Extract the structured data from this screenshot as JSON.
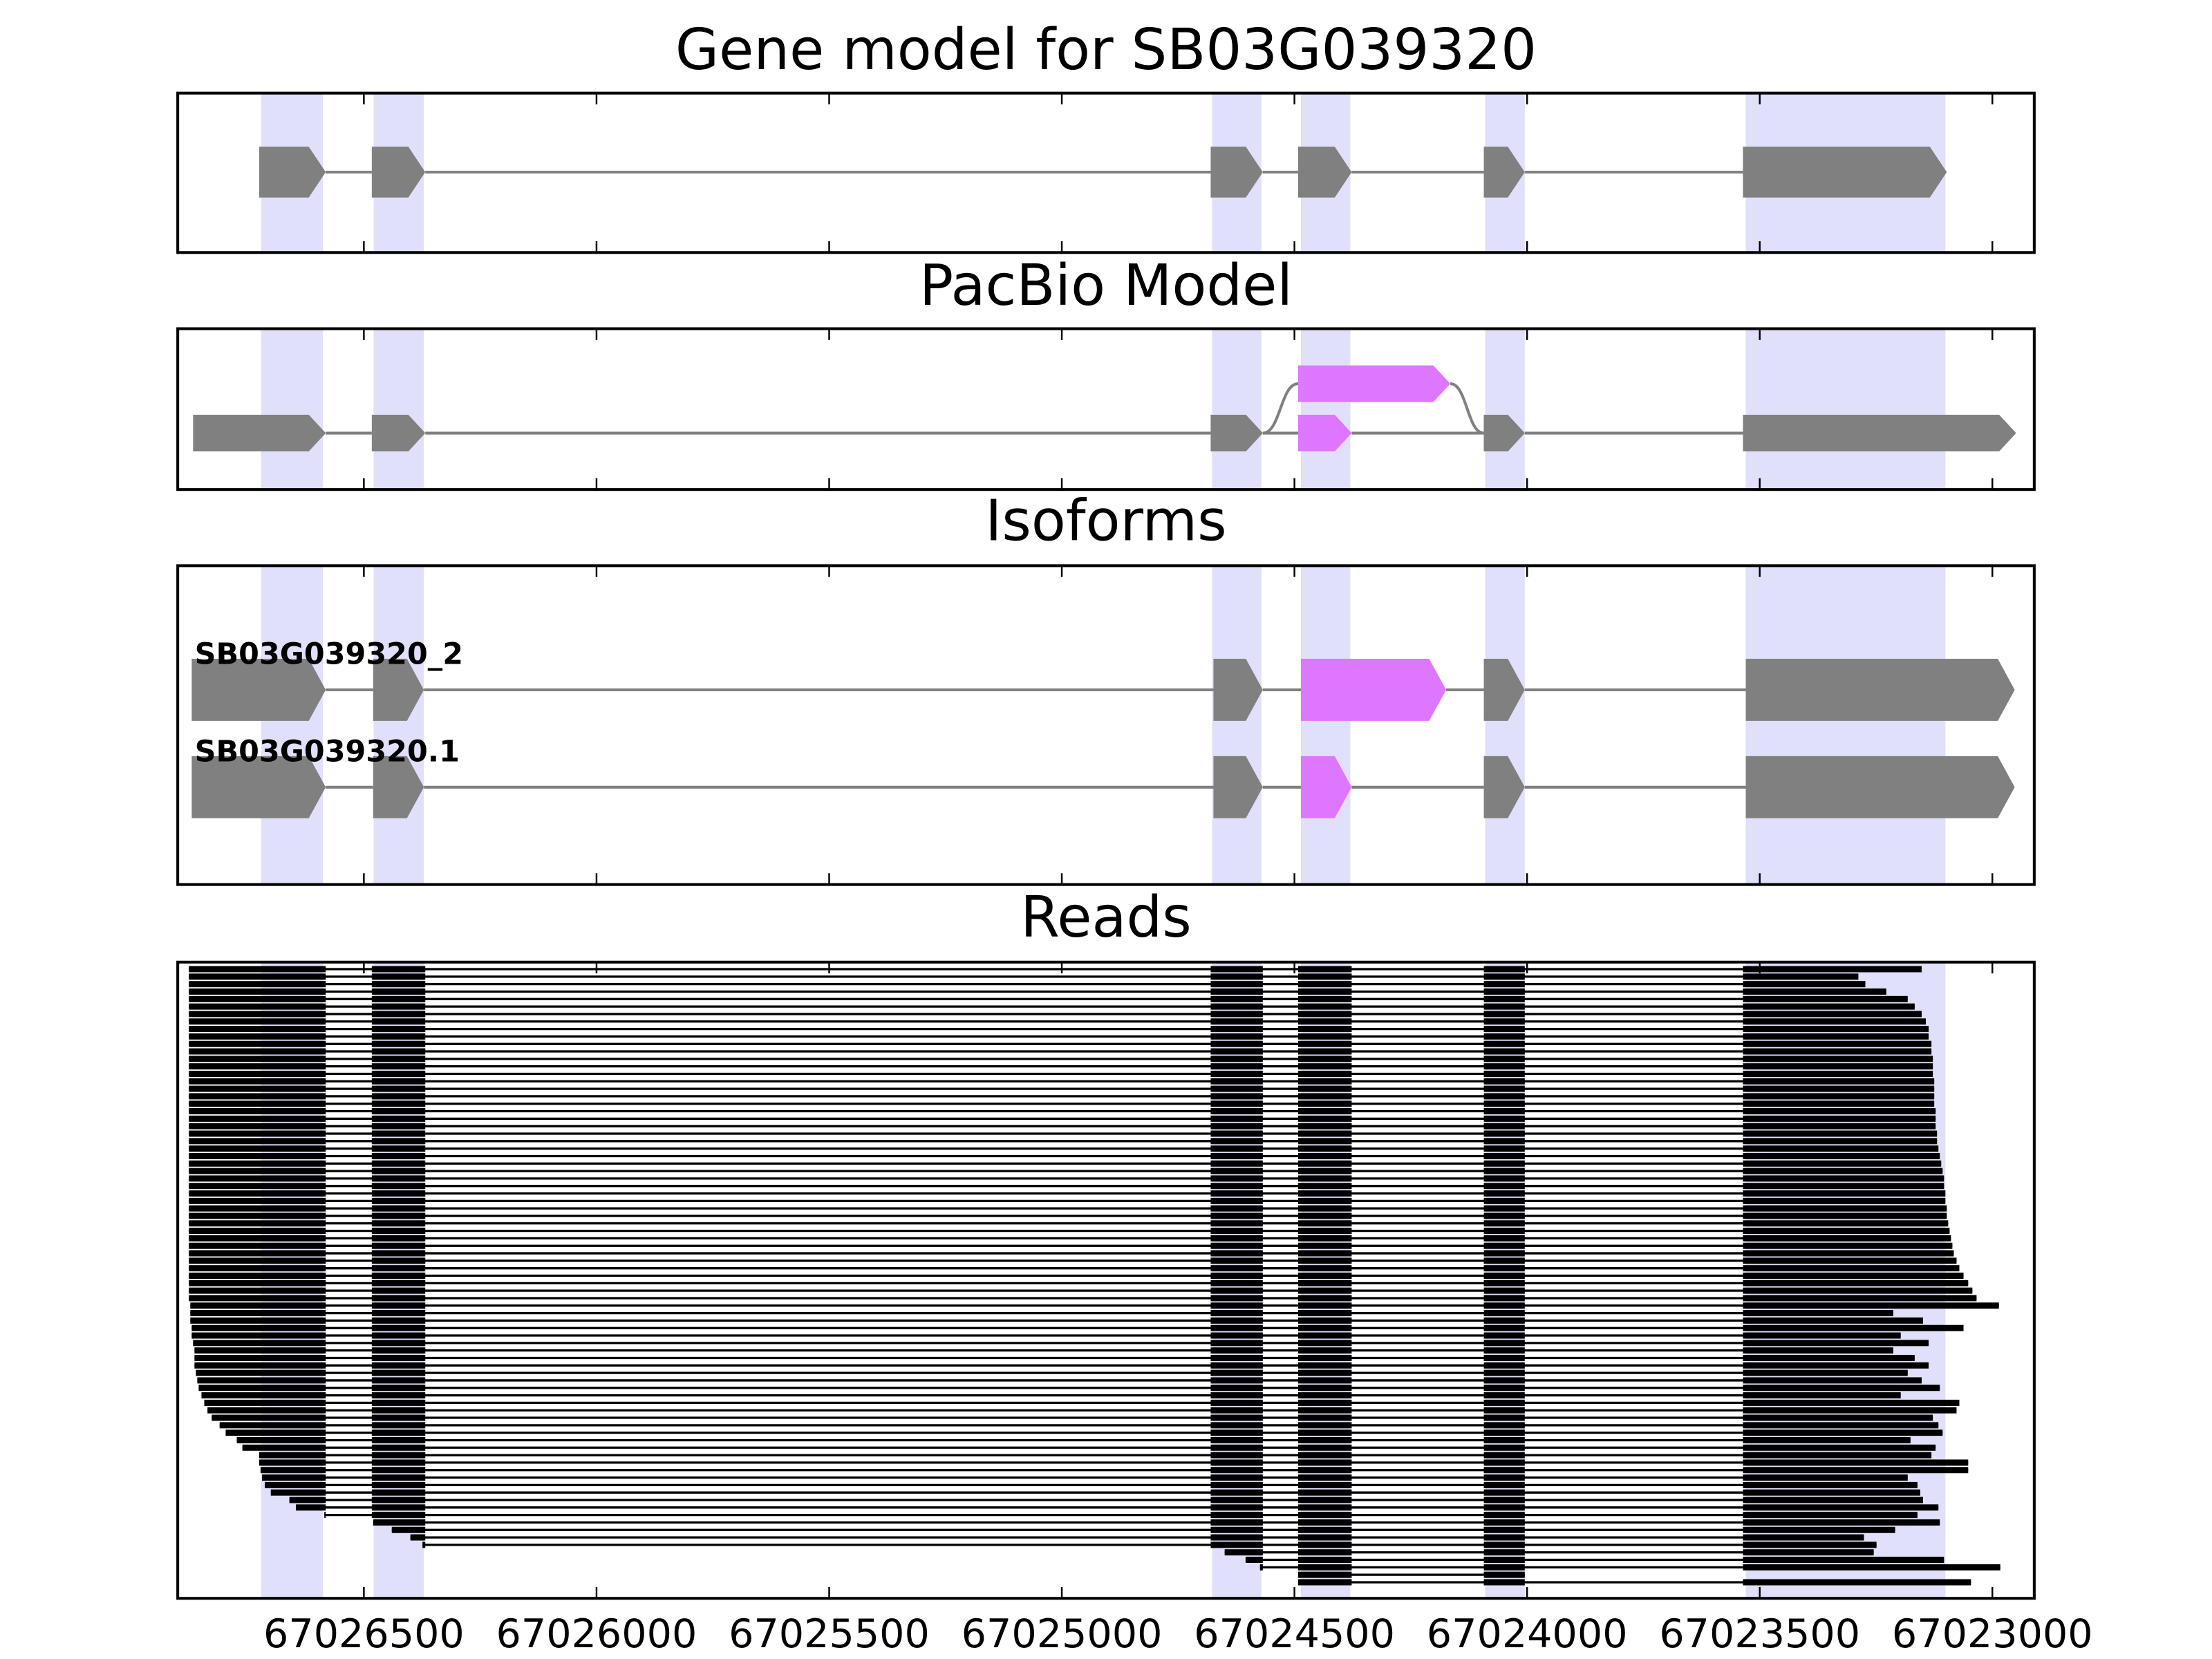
{
  "chart_data": {
    "type": "gene_model",
    "xlim": [
      67026900,
      67022910
    ],
    "xticks": [
      67026500,
      67026000,
      67025500,
      67025000,
      67024500,
      67024000,
      67023500,
      67023000
    ],
    "highlight_color": "#e0e0fb",
    "highlights": [
      [
        67026718,
        67026591
      ],
      [
        67026476,
        67026374
      ],
      [
        67024674,
        67024574
      ],
      [
        67024483,
        67024383
      ],
      [
        67024087,
        67024008
      ],
      [
        67023527,
        67023104
      ]
    ],
    "panels": [
      {
        "title": "Gene model for SB03G039320",
        "transcripts": [
          {
            "exons": [
              {
                "start": 67026725,
                "end": 67026582,
                "color": "#808080"
              },
              {
                "start": 67026483,
                "end": 67026368,
                "color": "#808080"
              },
              {
                "start": 67024680,
                "end": 67024568,
                "color": "#808080"
              },
              {
                "start": 67024492,
                "end": 67024377,
                "color": "#808080"
              },
              {
                "start": 67024093,
                "end": 67024005,
                "color": "#808080"
              },
              {
                "start": 67023536,
                "end": 67023098,
                "color": "#808080"
              }
            ]
          }
        ]
      },
      {
        "title": "PacBio Model",
        "transcripts": [
          {
            "exons": [
              {
                "start": 67026867,
                "end": 67026582,
                "color": "#808080"
              },
              {
                "start": 67026483,
                "end": 67026368,
                "color": "#808080"
              },
              {
                "start": 67024680,
                "end": 67024568,
                "color": "#808080"
              },
              {
                "start": 67024492,
                "end": 67024377,
                "color": "#dd77ff"
              },
              {
                "start": 67024093,
                "end": 67024005,
                "color": "#808080"
              },
              {
                "start": 67023536,
                "end": 67022949,
                "color": "#808080"
              }
            ]
          },
          {
            "exons": [
              {
                "start": 67024680,
                "end": 67024568,
                "color": "#808080"
              },
              {
                "start": 67024492,
                "end": 67024165,
                "color": "#dd77ff"
              },
              {
                "start": 67024093,
                "end": 67024005,
                "color": "#808080"
              }
            ]
          }
        ]
      },
      {
        "title": "Isoforms",
        "transcripts": [
          {
            "name": "SB03G039320_2",
            "exons": [
              {
                "start": 67026870,
                "end": 67026582,
                "color": "#808080"
              },
              {
                "start": 67026480,
                "end": 67026371,
                "color": "#808080"
              },
              {
                "start": 67024674,
                "end": 67024568,
                "color": "#808080"
              },
              {
                "start": 67024486,
                "end": 67024174,
                "color": "#dd77ff"
              },
              {
                "start": 67024093,
                "end": 67024005,
                "color": "#808080"
              },
              {
                "start": 67023530,
                "end": 67022952,
                "color": "#808080"
              }
            ]
          },
          {
            "name": "SB03G039320.1",
            "exons": [
              {
                "start": 67026870,
                "end": 67026582,
                "color": "#808080"
              },
              {
                "start": 67026480,
                "end": 67026371,
                "color": "#808080"
              },
              {
                "start": 67024674,
                "end": 67024568,
                "color": "#808080"
              },
              {
                "start": 67024486,
                "end": 67024377,
                "color": "#dd77ff"
              },
              {
                "start": 67024093,
                "end": 67024005,
                "color": "#808080"
              },
              {
                "start": 67023530,
                "end": 67022952,
                "color": "#808080"
              }
            ]
          }
        ]
      },
      {
        "title": "Reads",
        "color": "#000000",
        "reads": [
          [
            67026876,
            67023152
          ],
          [
            67026876,
            67023288
          ],
          [
            67026876,
            67023273
          ],
          [
            67026876,
            67023228
          ],
          [
            67026876,
            67023182
          ],
          [
            67026876,
            67023167
          ],
          [
            67026876,
            67023152
          ],
          [
            67026876,
            67023143
          ],
          [
            67026876,
            67023137
          ],
          [
            67026876,
            67023137
          ],
          [
            67026876,
            67023131
          ],
          [
            67026876,
            67023131
          ],
          [
            67026876,
            67023128
          ],
          [
            67026876,
            67023128
          ],
          [
            67026876,
            67023128
          ],
          [
            67026876,
            67023125
          ],
          [
            67026876,
            67023125
          ],
          [
            67026876,
            67023125
          ],
          [
            67026876,
            67023125
          ],
          [
            67026876,
            67023122
          ],
          [
            67026876,
            67023122
          ],
          [
            67026876,
            67023122
          ],
          [
            67026876,
            67023119
          ],
          [
            67026876,
            67023119
          ],
          [
            67026876,
            67023116
          ],
          [
            67026876,
            67023113
          ],
          [
            67026876,
            67023110
          ],
          [
            67026876,
            67023107
          ],
          [
            67026876,
            67023104
          ],
          [
            67026876,
            67023104
          ],
          [
            67026876,
            67023101
          ],
          [
            67026876,
            67023101
          ],
          [
            67026876,
            67023098
          ],
          [
            67026876,
            67023098
          ],
          [
            67026876,
            67023095
          ],
          [
            67026876,
            67023092
          ],
          [
            67026876,
            67023089
          ],
          [
            67026876,
            67023086
          ],
          [
            67026876,
            67023083
          ],
          [
            67026876,
            67023077
          ],
          [
            67026876,
            67023071
          ],
          [
            67026876,
            67023062
          ],
          [
            67026876,
            67023052
          ],
          [
            67026876,
            67023043
          ],
          [
            67026876,
            67023034
          ],
          [
            67026873,
            67022986
          ],
          [
            67026873,
            67023213
          ],
          [
            67026873,
            67023149
          ],
          [
            67026870,
            67023062
          ],
          [
            67026870,
            67023197
          ],
          [
            67026867,
            67023137
          ],
          [
            67026864,
            67023213
          ],
          [
            67026864,
            67023167
          ],
          [
            67026864,
            67023137
          ],
          [
            67026861,
            67023182
          ],
          [
            67026858,
            67023152
          ],
          [
            67026855,
            67023113
          ],
          [
            67026849,
            67023197
          ],
          [
            67026843,
            67023071
          ],
          [
            67026836,
            67023077
          ],
          [
            67026827,
            67023128
          ],
          [
            67026810,
            67023116
          ],
          [
            67026797,
            67023107
          ],
          [
            67026773,
            67023176
          ],
          [
            67026761,
            67023122
          ],
          [
            67026725,
            67023131
          ],
          [
            67026725,
            67023052
          ],
          [
            67026722,
            67023052
          ],
          [
            67026719,
            67023182
          ],
          [
            67026713,
            67023161
          ],
          [
            67026700,
            67023155
          ],
          [
            67026660,
            67023149
          ],
          [
            67026646,
            67023116
          ],
          [
            67026585,
            67023161
          ],
          [
            67026480,
            67023113
          ],
          [
            67026440,
            67023209
          ],
          [
            67026400,
            67023276
          ],
          [
            67026374,
            67023249
          ],
          [
            67024650,
            67023255
          ],
          [
            67024605,
            67023104
          ],
          [
            67024574,
            67022983
          ],
          [
            67024492,
            67024005
          ],
          [
            67024492,
            67023046
          ]
        ]
      }
    ]
  }
}
